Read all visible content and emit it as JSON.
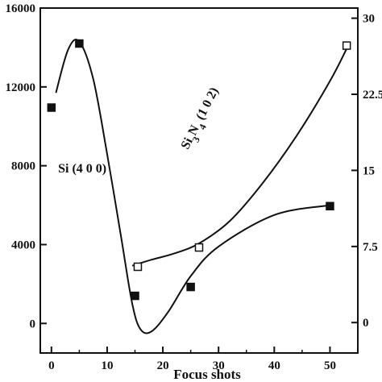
{
  "chart_data": {
    "type": "scatter",
    "xlabel": "Focus shots",
    "left_axis": {
      "ylim": [
        -1500,
        16000
      ],
      "ticks": [
        0,
        4000,
        8000,
        12000,
        16000
      ],
      "tick_labels": [
        "0",
        "4000",
        "8000",
        "12000",
        "16000"
      ]
    },
    "right_axis": {
      "ylim": [
        -3,
        31
      ],
      "ticks": [
        0,
        7.5,
        15,
        22.5,
        30
      ],
      "tick_labels": [
        "0",
        "7.5",
        "15",
        "22.5",
        "30"
      ]
    },
    "x_axis": {
      "xlim": [
        -2,
        55
      ],
      "ticks": [
        0,
        10,
        20,
        30,
        40,
        50
      ],
      "tick_labels": [
        "0",
        "10",
        "20",
        "30",
        "40",
        "50"
      ]
    },
    "series": [
      {
        "name": "Si (4 0 0)",
        "axis": "left",
        "marker": "filled-square",
        "color": "#111111",
        "points": [
          {
            "x": 0,
            "y": 10950
          },
          {
            "x": 5,
            "y": 14200
          },
          {
            "x": 15,
            "y": 1400
          },
          {
            "x": 25,
            "y": 1850
          },
          {
            "x": 50,
            "y": 5950
          }
        ],
        "fit": [
          {
            "x": 0.8,
            "y": 11700
          },
          {
            "x": 3,
            "y": 13900
          },
          {
            "x": 5,
            "y": 14300
          },
          {
            "x": 7.5,
            "y": 12400
          },
          {
            "x": 10,
            "y": 8600
          },
          {
            "x": 12.5,
            "y": 4400
          },
          {
            "x": 14.5,
            "y": 1000
          },
          {
            "x": 16,
            "y": -300
          },
          {
            "x": 18,
            "y": -400
          },
          {
            "x": 21,
            "y": 600
          },
          {
            "x": 25,
            "y": 2400
          },
          {
            "x": 30,
            "y": 3900
          },
          {
            "x": 40,
            "y": 5500
          },
          {
            "x": 50,
            "y": 6000
          }
        ]
      },
      {
        "name": "Si3N4 (1 0 2)",
        "axis": "right",
        "marker": "open-square",
        "color": "#111111",
        "points": [
          {
            "x": 15.5,
            "y": 5.5
          },
          {
            "x": 26.5,
            "y": 7.4
          },
          {
            "x": 53,
            "y": 27.3
          }
        ],
        "fit": [
          {
            "x": 14.5,
            "y": 5.6
          },
          {
            "x": 18,
            "y": 6.2
          },
          {
            "x": 22,
            "y": 6.8
          },
          {
            "x": 26.5,
            "y": 7.8
          },
          {
            "x": 32,
            "y": 10.0
          },
          {
            "x": 38,
            "y": 13.8
          },
          {
            "x": 44,
            "y": 18.4
          },
          {
            "x": 50,
            "y": 23.8
          },
          {
            "x": 53,
            "y": 27.0
          }
        ]
      }
    ],
    "annotations": [
      {
        "text": "Si (4 0 0)",
        "x": 1.2,
        "y": 7650,
        "axis": "left",
        "rotation": 0
      },
      {
        "text_parts": [
          "Si",
          "3",
          "N",
          "4",
          " (1 0 2)"
        ],
        "x": 24.5,
        "y": 17.0,
        "axis": "right",
        "rotation": -63
      }
    ],
    "grid": false,
    "legend": "none"
  }
}
